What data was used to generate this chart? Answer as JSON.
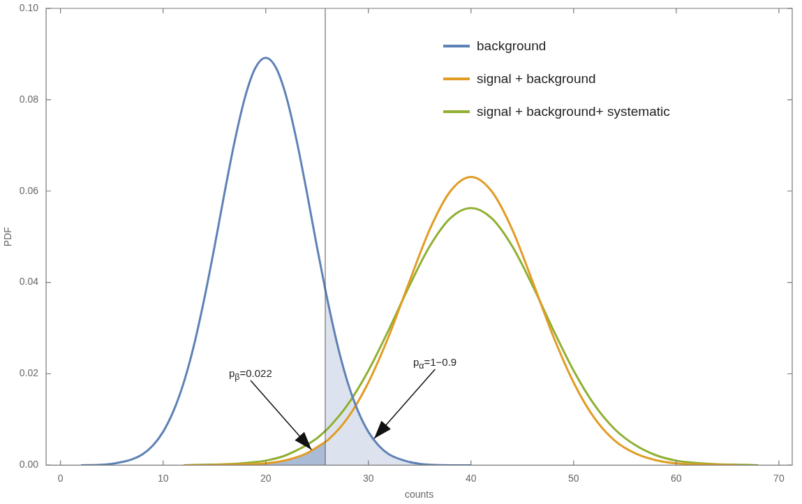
{
  "chart_data": {
    "type": "line",
    "xlabel": "counts",
    "ylabel": "PDF",
    "xlim": [
      -1.4,
      71.3
    ],
    "ylim": [
      0,
      0.1
    ],
    "xticks": [
      0,
      10,
      20,
      30,
      40,
      50,
      60,
      70
    ],
    "yticks": [
      {
        "value": 0,
        "label": "0.00"
      },
      {
        "value": 0.02,
        "label": "0.02"
      },
      {
        "value": 0.04,
        "label": "0.04"
      },
      {
        "value": 0.06,
        "label": "0.06"
      },
      {
        "value": 0.08,
        "label": "0.08"
      },
      {
        "value": 0.1,
        "label": "0.10"
      }
    ],
    "legend": "top right",
    "grid": false,
    "series": [
      {
        "type": "area",
        "color": "#dde3ee",
        "x": [
          25.8,
          26,
          27,
          28,
          29,
          30,
          31,
          32,
          34,
          35,
          36,
          38
        ],
        "values": [
          0.0385,
          0.0363,
          0.0262,
          0.018,
          0.0118,
          0.0073,
          0.0043,
          0.0024,
          0.0007,
          0.0003,
          0.0001,
          0
        ]
      },
      {
        "type": "area",
        "color": "#aabbd5",
        "x": [
          14,
          16,
          18,
          20,
          22,
          24,
          25.8
        ],
        "values": [
          0,
          0.0001,
          0.0002,
          0.0004,
          0.0011,
          0.0026,
          0.0051
        ]
      },
      {
        "name": "background",
        "color": "#5e81b5",
        "x": [
          2,
          4,
          5,
          6,
          7,
          8,
          9,
          10,
          11,
          12,
          13,
          14,
          15,
          16,
          17,
          18,
          19,
          20,
          21,
          22,
          23,
          24,
          25,
          25.8,
          26,
          27,
          28,
          29,
          30,
          31,
          32,
          34,
          35,
          36,
          38,
          40
        ],
        "values": [
          0,
          0.0001,
          0.0003,
          0.0007,
          0.0013,
          0.0024,
          0.0043,
          0.0073,
          0.0118,
          0.018,
          0.0262,
          0.0363,
          0.0477,
          0.0598,
          0.0712,
          0.0807,
          0.087,
          0.0892,
          0.087,
          0.0807,
          0.0712,
          0.0598,
          0.0477,
          0.0385,
          0.0363,
          0.0262,
          0.018,
          0.0118,
          0.0073,
          0.0043,
          0.0024,
          0.0007,
          0.0003,
          0.0001,
          0,
          0
        ]
      },
      {
        "name": "signal + background",
        "color": "#e19c24",
        "x": [
          12,
          14,
          16,
          18,
          20,
          22,
          24,
          25.8,
          26,
          28,
          30,
          32,
          34,
          36,
          38,
          40,
          42,
          44,
          46,
          48,
          50,
          52,
          54,
          56,
          58,
          60,
          62,
          64,
          66
        ],
        "values": [
          0,
          0,
          0.0001,
          0.0002,
          0.0004,
          0.0011,
          0.0026,
          0.0051,
          0.0054,
          0.0104,
          0.0181,
          0.0283,
          0.0402,
          0.0517,
          0.06,
          0.0631,
          0.06,
          0.0517,
          0.0402,
          0.0283,
          0.0181,
          0.0104,
          0.0054,
          0.0026,
          0.0011,
          0.0004,
          0.0002,
          0.0001,
          0
        ]
      },
      {
        "name": "signal + background+ systematic",
        "color": "#8fb032",
        "x": [
          12,
          14,
          16,
          18,
          20,
          22,
          25,
          25.8,
          26,
          28,
          30,
          32,
          34,
          36,
          38,
          40,
          42,
          44,
          46,
          48,
          50,
          52,
          54,
          56,
          58,
          60,
          62,
          64,
          66,
          68
        ],
        "values": [
          0,
          0.0001,
          0.0002,
          0.0005,
          0.001,
          0.0022,
          0.0059,
          0.0075,
          0.0079,
          0.0133,
          0.0207,
          0.0297,
          0.0393,
          0.048,
          0.0541,
          0.0563,
          0.0541,
          0.048,
          0.0393,
          0.0297,
          0.0207,
          0.0133,
          0.0079,
          0.0044,
          0.0022,
          0.001,
          0.0005,
          0.0002,
          0.0001,
          0
        ]
      }
    ],
    "ref_lines": [
      {
        "axis": "x",
        "value": 25.8,
        "color": "#555555"
      }
    ],
    "annotations": [
      {
        "text": "p$_{β}$=0.022",
        "x": 24.5,
        "y": 0.0033
      },
      {
        "text": "p$_{α}$=1−0.9",
        "x": 30.5,
        "y": 0.0057
      }
    ]
  }
}
